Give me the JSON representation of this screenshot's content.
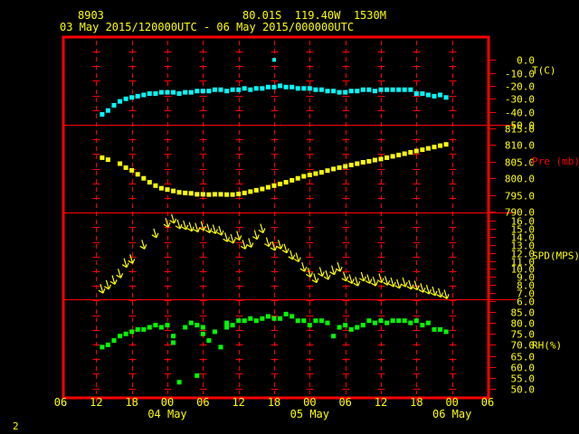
{
  "header": {
    "station": "8903",
    "location": "80.01S  119.40W  1530M",
    "period": "03 May 2015/120000UTC - 06 May 2015/000000UTC"
  },
  "footer": {
    "page_number": "2"
  },
  "colors": {
    "background": "#000000",
    "frame": "#ff0000",
    "temperature": "#00ffff",
    "pressure": "#ffff00",
    "wind": "#ffff00",
    "humidity": "#00ff00",
    "text": "#ffff00",
    "pressure_label": "#ff0000"
  },
  "chart_data": {
    "type": "scatter",
    "title": "",
    "x_unit": "hours since 03 May 2015 00 UTC",
    "x_range": [
      6,
      78
    ],
    "x_tick_labels": [
      "06",
      "12",
      "18",
      "00",
      "06",
      "12",
      "18",
      "00",
      "06",
      "12",
      "18",
      "00",
      "06"
    ],
    "date_labels": [
      {
        "label": "04 May",
        "at_hour": 24
      },
      {
        "label": "05 May",
        "at_hour": 48
      },
      {
        "label": "06 May",
        "at_hour": 72
      }
    ],
    "grid": true,
    "panels": [
      {
        "name": "temperature",
        "label": "T(C)",
        "ylim": [
          -50,
          5
        ],
        "tick_labels": [
          "0.0",
          "-10.0",
          "-20.0",
          "-30.0",
          "-40.0",
          "-50.0"
        ],
        "tick_values": [
          0,
          -10,
          -20,
          -30,
          -40,
          -50
        ],
        "marker": "square",
        "points": [
          [
            13,
            -42
          ],
          [
            14,
            -39
          ],
          [
            15,
            -35
          ],
          [
            16,
            -32
          ],
          [
            17,
            -30
          ],
          [
            18,
            -29
          ],
          [
            19,
            -28
          ],
          [
            20,
            -27
          ],
          [
            21,
            -26
          ],
          [
            22,
            -26
          ],
          [
            23,
            -25
          ],
          [
            24,
            -25
          ],
          [
            25,
            -25
          ],
          [
            26,
            -26
          ],
          [
            27,
            -25
          ],
          [
            28,
            -25
          ],
          [
            29,
            -24
          ],
          [
            30,
            -24
          ],
          [
            31,
            -24
          ],
          [
            32,
            -23
          ],
          [
            33,
            -23
          ],
          [
            34,
            -24
          ],
          [
            35,
            -23
          ],
          [
            36,
            -23
          ],
          [
            37,
            -22
          ],
          [
            38,
            -23
          ],
          [
            39,
            -22
          ],
          [
            40,
            -22
          ],
          [
            41,
            -21
          ],
          [
            42,
            -21
          ],
          [
            43,
            -20
          ],
          [
            44,
            -21
          ],
          [
            45,
            -21
          ],
          [
            46,
            -22
          ],
          [
            47,
            -22
          ],
          [
            48,
            -22
          ],
          [
            49,
            -23
          ],
          [
            50,
            -23
          ],
          [
            51,
            -24
          ],
          [
            52,
            -24
          ],
          [
            53,
            -25
          ],
          [
            54,
            -25
          ],
          [
            55,
            -24
          ],
          [
            56,
            -24
          ],
          [
            57,
            -23
          ],
          [
            58,
            -23
          ],
          [
            59,
            -24
          ],
          [
            60,
            -23
          ],
          [
            61,
            -23
          ],
          [
            62,
            -23
          ],
          [
            63,
            -23
          ],
          [
            64,
            -23
          ],
          [
            65,
            -23
          ],
          [
            66,
            -26
          ],
          [
            67,
            -26
          ],
          [
            68,
            -27
          ],
          [
            69,
            -28
          ],
          [
            70,
            -27
          ],
          [
            71,
            -29
          ]
        ]
      },
      {
        "name": "pressure",
        "label": "Pre (mb)",
        "ylim": [
          790,
          815
        ],
        "tick_labels": [
          "815.0",
          "810.0",
          "805.0",
          "800.0",
          "795.0",
          "790.0"
        ],
        "tick_values": [
          815,
          810,
          805,
          800,
          795,
          790
        ],
        "marker": "square",
        "points": [
          [
            13,
            806.2
          ],
          [
            14,
            805.6
          ],
          [
            16,
            804.4
          ],
          [
            17,
            803.2
          ],
          [
            18,
            802.4
          ],
          [
            19,
            801.2
          ],
          [
            20,
            800.0
          ],
          [
            21,
            798.8
          ],
          [
            22,
            797.8
          ],
          [
            23,
            797.0
          ],
          [
            24,
            796.6
          ],
          [
            25,
            796.2
          ],
          [
            26,
            795.8
          ],
          [
            27,
            795.6
          ],
          [
            28,
            795.5
          ],
          [
            29,
            795.2
          ],
          [
            30,
            795.2
          ],
          [
            31,
            795.1
          ],
          [
            32,
            795.2
          ],
          [
            33,
            795.2
          ],
          [
            34,
            795.1
          ],
          [
            35,
            795.1
          ],
          [
            36,
            795.3
          ],
          [
            37,
            795.6
          ],
          [
            38,
            796.0
          ],
          [
            39,
            796.4
          ],
          [
            40,
            796.8
          ],
          [
            41,
            797.3
          ],
          [
            42,
            797.8
          ],
          [
            43,
            798.3
          ],
          [
            44,
            798.8
          ],
          [
            45,
            799.4
          ],
          [
            46,
            800.0
          ],
          [
            47,
            800.6
          ],
          [
            48,
            801.0
          ],
          [
            49,
            801.4
          ],
          [
            50,
            801.8
          ],
          [
            51,
            802.3
          ],
          [
            52,
            802.8
          ],
          [
            53,
            803.2
          ],
          [
            54,
            803.6
          ],
          [
            55,
            804.0
          ],
          [
            56,
            804.4
          ],
          [
            57,
            804.8
          ],
          [
            58,
            805.1
          ],
          [
            59,
            805.5
          ],
          [
            60,
            805.8
          ],
          [
            61,
            806.2
          ],
          [
            62,
            806.6
          ],
          [
            63,
            807.0
          ],
          [
            64,
            807.4
          ],
          [
            65,
            807.8
          ],
          [
            66,
            808.2
          ],
          [
            67,
            808.6
          ],
          [
            68,
            809.0
          ],
          [
            69,
            809.4
          ],
          [
            70,
            809.8
          ],
          [
            71,
            810.2
          ]
        ]
      },
      {
        "name": "wind_speed",
        "label": "SPD(MPS)",
        "ylim": [
          6,
          16
        ],
        "tick_labels": [
          "16.0",
          "15.0",
          "14.0",
          "13.0",
          "12.0",
          "11.0",
          "10.0",
          "9.0",
          "8.0",
          "7.0",
          "6.0"
        ],
        "tick_values": [
          16,
          15,
          14,
          13,
          12,
          11,
          10,
          9,
          8,
          7,
          6
        ],
        "marker": "arrow",
        "points": [
          [
            13,
            7.1
          ],
          [
            14,
            7.6
          ],
          [
            15,
            8.2
          ],
          [
            16,
            9.0
          ],
          [
            17,
            10.3
          ],
          [
            18,
            10.8
          ],
          [
            20,
            12.6
          ],
          [
            22,
            14.0
          ],
          [
            24,
            15.3
          ],
          [
            25,
            15.8
          ],
          [
            26,
            15.1
          ],
          [
            27,
            15.0
          ],
          [
            28,
            14.8
          ],
          [
            29,
            14.7
          ],
          [
            30,
            14.9
          ],
          [
            31,
            14.6
          ],
          [
            32,
            14.5
          ],
          [
            33,
            14.3
          ],
          [
            34,
            13.5
          ],
          [
            35,
            13.3
          ],
          [
            36,
            13.7
          ],
          [
            37,
            12.6
          ],
          [
            38,
            12.8
          ],
          [
            39,
            13.8
          ],
          [
            40,
            14.6
          ],
          [
            41,
            12.9
          ],
          [
            42,
            12.4
          ],
          [
            43,
            12.6
          ],
          [
            44,
            12.1
          ],
          [
            45,
            11.3
          ],
          [
            46,
            11.0
          ],
          [
            47,
            9.8
          ],
          [
            48,
            9.1
          ],
          [
            49,
            8.4
          ],
          [
            50,
            9.2
          ],
          [
            51,
            8.8
          ],
          [
            52,
            9.4
          ],
          [
            53,
            9.8
          ],
          [
            54,
            8.6
          ],
          [
            55,
            8.3
          ],
          [
            56,
            8.0
          ],
          [
            57,
            8.6
          ],
          [
            58,
            8.3
          ],
          [
            59,
            8.0
          ],
          [
            60,
            8.4
          ],
          [
            61,
            8.1
          ],
          [
            62,
            7.9
          ],
          [
            63,
            7.7
          ],
          [
            64,
            7.9
          ],
          [
            65,
            7.6
          ],
          [
            66,
            7.5
          ],
          [
            67,
            7.2
          ],
          [
            68,
            7.0
          ],
          [
            69,
            6.8
          ],
          [
            70,
            6.6
          ],
          [
            71,
            6.4
          ]
        ]
      },
      {
        "name": "relative_humidity",
        "label": "RH(%)",
        "ylim": [
          50,
          85
        ],
        "tick_labels": [
          "85.0",
          "80.0",
          "75.0",
          "70.0",
          "65.0",
          "60.0",
          "55.0",
          "50.0"
        ],
        "tick_values": [
          85,
          80,
          75,
          70,
          65,
          60,
          55,
          50
        ],
        "marker": "square",
        "points": [
          [
            13,
            69
          ],
          [
            14,
            70
          ],
          [
            15,
            72
          ],
          [
            16,
            74
          ],
          [
            17,
            75
          ],
          [
            18,
            76
          ],
          [
            19,
            77
          ],
          [
            20,
            77
          ],
          [
            21,
            78
          ],
          [
            22,
            79
          ],
          [
            23,
            78
          ],
          [
            24,
            79
          ],
          [
            25,
            71
          ],
          [
            25,
            74
          ],
          [
            26,
            53
          ],
          [
            27,
            78
          ],
          [
            28,
            80
          ],
          [
            29,
            79
          ],
          [
            29,
            56
          ],
          [
            30,
            78
          ],
          [
            30,
            75
          ],
          [
            31,
            72
          ],
          [
            32,
            76
          ],
          [
            33,
            69
          ],
          [
            34,
            78
          ],
          [
            34,
            80
          ],
          [
            35,
            79
          ],
          [
            36,
            81
          ],
          [
            37,
            81
          ],
          [
            38,
            82
          ],
          [
            39,
            81
          ],
          [
            40,
            82
          ],
          [
            41,
            83
          ],
          [
            42,
            82
          ],
          [
            43,
            82
          ],
          [
            44,
            84
          ],
          [
            45,
            83
          ],
          [
            46,
            81
          ],
          [
            47,
            81
          ],
          [
            48,
            79
          ],
          [
            49,
            81
          ],
          [
            50,
            81
          ],
          [
            51,
            80
          ],
          [
            52,
            74
          ],
          [
            53,
            78
          ],
          [
            54,
            79
          ],
          [
            55,
            77
          ],
          [
            56,
            78
          ],
          [
            57,
            79
          ],
          [
            58,
            81
          ],
          [
            59,
            80
          ],
          [
            60,
            81
          ],
          [
            61,
            80
          ],
          [
            62,
            81
          ],
          [
            63,
            81
          ],
          [
            64,
            81
          ],
          [
            65,
            80
          ],
          [
            66,
            81
          ],
          [
            67,
            79
          ],
          [
            68,
            80
          ],
          [
            69,
            77
          ],
          [
            70,
            77
          ],
          [
            71,
            76
          ]
        ]
      }
    ],
    "outliers": [
      {
        "panel": "temperature",
        "x": 42,
        "y": 0.0
      }
    ]
  }
}
